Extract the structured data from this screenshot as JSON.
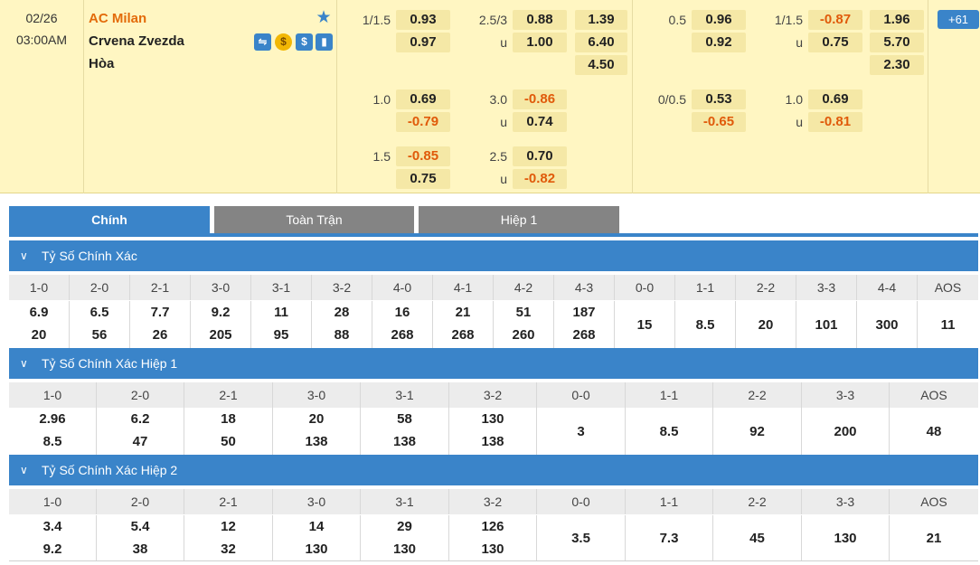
{
  "match": {
    "date": "02/26",
    "time": "03:00AM",
    "home": "AC Milan",
    "away": "Crvena Zvezda",
    "draw": "Hòa",
    "icons": [
      "live-stream-icon",
      "coin-icon",
      "dollar-icon",
      "stats-icon"
    ],
    "more": "61",
    "odds": {
      "ft_handicap": [
        {
          "line": "1/1.5",
          "home": "0.93",
          "away": "0.97"
        },
        {
          "line": "1.0",
          "home": "0.69",
          "away": "-0.79"
        },
        {
          "line": "1.5",
          "home": "-0.85",
          "away": "0.75"
        }
      ],
      "ft_overunder": [
        {
          "line": "2.5/3",
          "over": "0.88",
          "under_label": "u",
          "under": "1.00"
        },
        {
          "line": "3.0",
          "over": "-0.86",
          "under_label": "u",
          "under": "0.74"
        },
        {
          "line": "2.5",
          "over": "0.70",
          "under_label": "u",
          "under": "-0.82"
        }
      ],
      "ft_1x2": {
        "home": "1.39",
        "away": "6.40",
        "draw": "4.50"
      },
      "h1_handicap": [
        {
          "line": "0.5",
          "home": "0.96",
          "away": "0.92"
        },
        {
          "line": "0/0.5",
          "home": "0.53",
          "away": "-0.65"
        }
      ],
      "h1_overunder": [
        {
          "line": "1/1.5",
          "over": "-0.87",
          "under_label": "u",
          "under": "0.75"
        },
        {
          "line": "1.0",
          "over": "0.69",
          "under_label": "u",
          "under": "-0.81"
        }
      ],
      "h1_1x2": {
        "home": "1.96",
        "away": "5.70",
        "draw": "2.30"
      }
    }
  },
  "tabs": [
    {
      "label": "Chính",
      "active": true
    },
    {
      "label": "Toàn Trận",
      "active": false
    },
    {
      "label": "Hiệp 1",
      "active": false
    }
  ],
  "sections": [
    {
      "title": "Tỷ Số Chính Xác",
      "headers": [
        "1-0",
        "2-0",
        "2-1",
        "3-0",
        "3-1",
        "3-2",
        "4-0",
        "4-1",
        "4-2",
        "4-3",
        "0-0",
        "1-1",
        "2-2",
        "3-3",
        "4-4",
        "AOS"
      ],
      "values": [
        [
          "6.9",
          "20"
        ],
        [
          "6.5",
          "56"
        ],
        [
          "7.7",
          "26"
        ],
        [
          "9.2",
          "205"
        ],
        [
          "11",
          "95"
        ],
        [
          "28",
          "88"
        ],
        [
          "16",
          "268"
        ],
        [
          "21",
          "268"
        ],
        [
          "51",
          "260"
        ],
        [
          "187",
          "268"
        ],
        [
          "15"
        ],
        [
          "8.5"
        ],
        [
          "20"
        ],
        [
          "101"
        ],
        [
          "300"
        ],
        [
          "11"
        ]
      ]
    },
    {
      "title": "Tỷ Số Chính Xác Hiệp 1",
      "headers": [
        "1-0",
        "2-0",
        "2-1",
        "3-0",
        "3-1",
        "3-2",
        "0-0",
        "1-1",
        "2-2",
        "3-3",
        "AOS"
      ],
      "values": [
        [
          "2.96",
          "8.5"
        ],
        [
          "6.2",
          "47"
        ],
        [
          "18",
          "50"
        ],
        [
          "20",
          "138"
        ],
        [
          "58",
          "138"
        ],
        [
          "130",
          "138"
        ],
        [
          "3"
        ],
        [
          "8.5"
        ],
        [
          "92"
        ],
        [
          "200"
        ],
        [
          "48"
        ]
      ]
    },
    {
      "title": "Tỷ Số Chính Xác Hiệp 2",
      "headers": [
        "1-0",
        "2-0",
        "2-1",
        "3-0",
        "3-1",
        "3-2",
        "0-0",
        "1-1",
        "2-2",
        "3-3",
        "AOS"
      ],
      "values": [
        [
          "3.4",
          "9.2"
        ],
        [
          "5.4",
          "38"
        ],
        [
          "12",
          "32"
        ],
        [
          "14",
          "130"
        ],
        [
          "29",
          "130"
        ],
        [
          "126",
          "130"
        ],
        [
          "3.5"
        ],
        [
          "7.3"
        ],
        [
          "45"
        ],
        [
          "130"
        ],
        [
          "21"
        ]
      ]
    }
  ],
  "colors": {
    "accent": "#3a84c9",
    "negative": "#e05a0a",
    "home_team": "#e36b0a",
    "header_bg": "#fff6c2"
  }
}
